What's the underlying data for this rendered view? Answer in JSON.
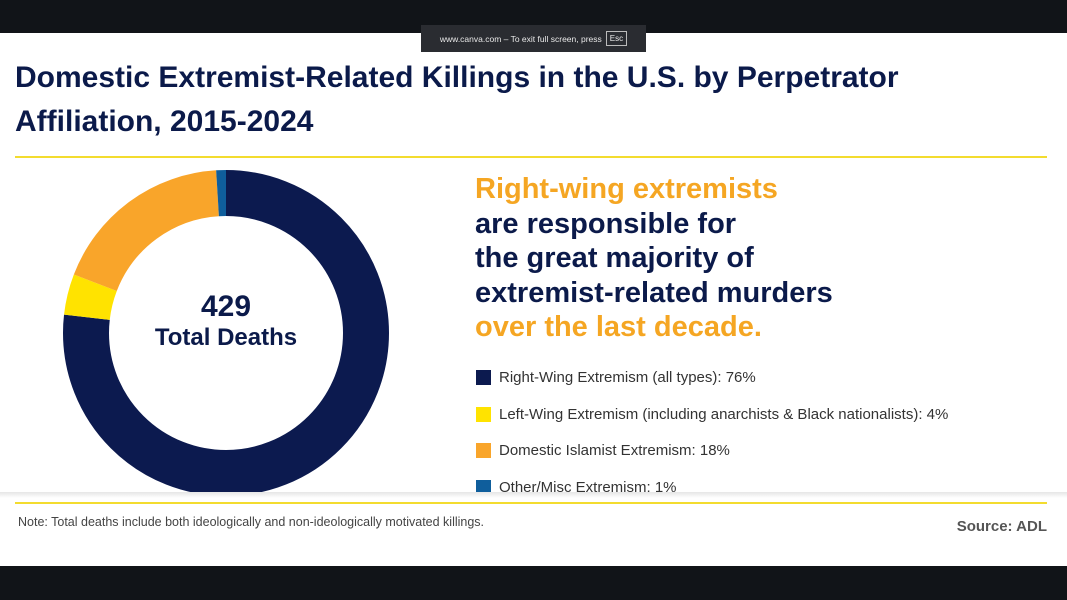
{
  "browser": {
    "fullscreen_notice": "www.canva.com – To exit full screen, press",
    "esc_key": "Esc"
  },
  "title": "Domestic Extremist-Related Killings in the U.S. by Perpetrator Affiliation, 2015-2024",
  "center": {
    "total": "429",
    "label": "Total Deaths"
  },
  "headline": {
    "line1": "Right-wing extremists",
    "line2": "are responsible for",
    "line3": "the great majority of",
    "line4": "extremist-related murders",
    "line5": "over the last decade."
  },
  "legend": [
    "Right-Wing Extremism (all types): 76%",
    "Left-Wing Extremism (including anarchists & Black nationalists): 4%",
    "Domestic Islamist Extremism: 18%",
    "Other/Misc Extremism: 1%"
  ],
  "note": "Note: Total deaths include both ideologically and non-ideologically motivated killings.",
  "source": "Source: ADL",
  "chart_data": {
    "type": "pie",
    "subtype": "donut",
    "title": "Domestic Extremist-Related Killings in the U.S. by Perpetrator Affiliation, 2015-2024",
    "total": 429,
    "categories": [
      "Right-Wing Extremism (all types)",
      "Left-Wing Extremism (including anarchists & Black nationalists)",
      "Domestic Islamist Extremism",
      "Other/Misc Extremism"
    ],
    "values": [
      76,
      4,
      18,
      1
    ],
    "unit": "%",
    "colors": [
      "#0c1a4f",
      "#ffe300",
      "#f9a52a",
      "#0f5e9c"
    ],
    "legend_position": "right"
  }
}
